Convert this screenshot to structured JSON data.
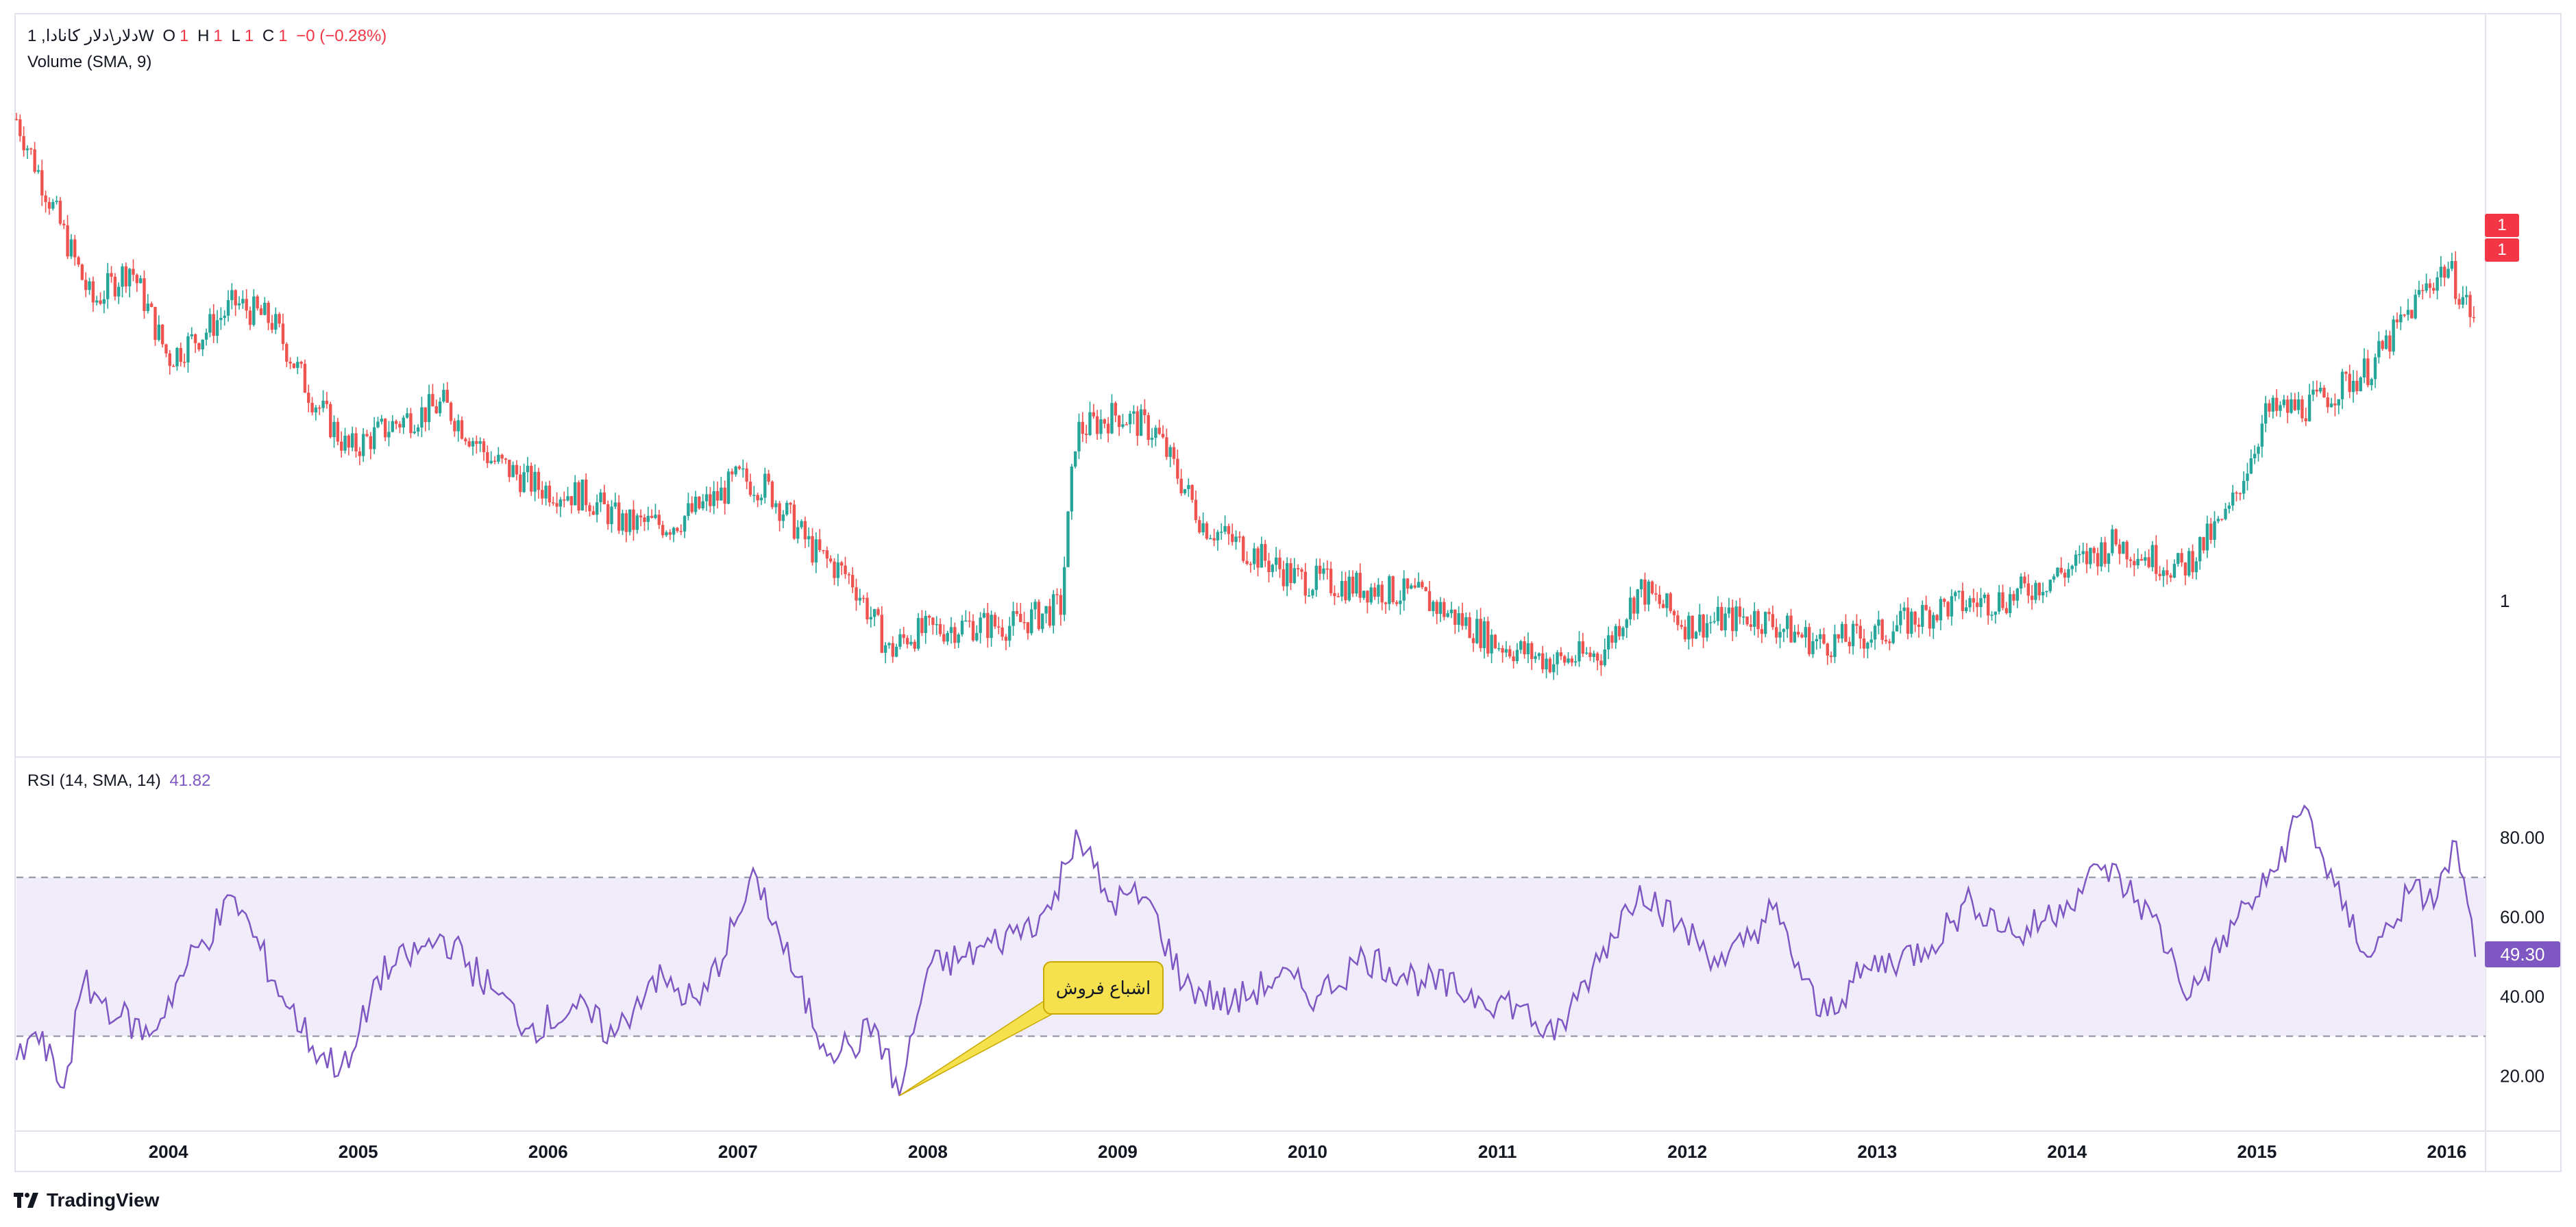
{
  "header": {
    "symbol": "دلار\\دلار کانادا, 1W",
    "o_label": "O",
    "o_value": "1",
    "h_label": "H",
    "h_value": "1",
    "l_label": "L",
    "l_value": "1",
    "c_label": "C",
    "c_value": "1",
    "change": "−0 (−0.28%)"
  },
  "volume_legend": "Volume (SMA, 9)",
  "rsi_legend": {
    "label": "RSI (14, SMA, 14)",
    "value": "41.82"
  },
  "price_axis": {
    "label": "1",
    "badges": [
      "1",
      "1"
    ]
  },
  "rsi_axis": {
    "ticks": [
      "80.00",
      "60.00",
      "40.00",
      "20.00"
    ],
    "current": "49.30"
  },
  "annotation": {
    "text": "اشباع فروش"
  },
  "footer": {
    "brand": "TradingView"
  },
  "colors": {
    "up": "#26a69a",
    "down": "#ef5350",
    "rsi": "#7e57c2",
    "band": "#f1ecfa"
  },
  "chart_data": [
    {
      "type": "candlestick",
      "x_range": [
        2003.2,
        2016.15
      ],
      "x_ticks": [
        "2004",
        "2005",
        "2006",
        "2007",
        "2008",
        "2009",
        "2010",
        "2011",
        "2012",
        "2013",
        "2014",
        "2015",
        "2016"
      ],
      "close_points": [
        [
          2003.2,
          1.56
        ],
        [
          2003.4,
          1.46
        ],
        [
          2003.6,
          1.36
        ],
        [
          2003.8,
          1.4
        ],
        [
          2004.0,
          1.3
        ],
        [
          2004.2,
          1.33
        ],
        [
          2004.35,
          1.36
        ],
        [
          2004.55,
          1.34
        ],
        [
          2004.75,
          1.26
        ],
        [
          2004.95,
          1.2
        ],
        [
          2005.2,
          1.23
        ],
        [
          2005.45,
          1.25
        ],
        [
          2005.7,
          1.19
        ],
        [
          2005.95,
          1.16
        ],
        [
          2006.2,
          1.15
        ],
        [
          2006.4,
          1.12
        ],
        [
          2006.65,
          1.12
        ],
        [
          2006.9,
          1.15
        ],
        [
          2007.0,
          1.17
        ],
        [
          2007.15,
          1.16
        ],
        [
          2007.4,
          1.09
        ],
        [
          2007.6,
          1.06
        ],
        [
          2007.8,
          0.98
        ],
        [
          2007.9,
          1.0
        ],
        [
          2008.2,
          1.01
        ],
        [
          2008.45,
          1.01
        ],
        [
          2008.7,
          1.03
        ],
        [
          2008.78,
          1.22
        ],
        [
          2009.0,
          1.24
        ],
        [
          2009.2,
          1.22
        ],
        [
          2009.45,
          1.12
        ],
        [
          2009.7,
          1.09
        ],
        [
          2009.95,
          1.06
        ],
        [
          2010.35,
          1.05
        ],
        [
          2010.6,
          1.04
        ],
        [
          2010.85,
          1.01
        ],
        [
          2011.0,
          0.99
        ],
        [
          2011.3,
          0.97
        ],
        [
          2011.55,
          0.98
        ],
        [
          2011.75,
          1.05
        ],
        [
          2012.0,
          1.01
        ],
        [
          2012.35,
          1.02
        ],
        [
          2012.7,
          0.99
        ],
        [
          2013.0,
          1.0
        ],
        [
          2013.35,
          1.03
        ],
        [
          2013.7,
          1.04
        ],
        [
          2014.0,
          1.07
        ],
        [
          2014.25,
          1.1
        ],
        [
          2014.6,
          1.07
        ],
        [
          2014.85,
          1.13
        ],
        [
          2015.05,
          1.24
        ],
        [
          2015.3,
          1.25
        ],
        [
          2015.6,
          1.29
        ],
        [
          2015.9,
          1.38
        ],
        [
          2016.0,
          1.4
        ],
        [
          2016.15,
          1.34
        ]
      ]
    },
    {
      "type": "line",
      "name": "RSI (14, SMA, 14)",
      "ylim": [
        8,
        96
      ],
      "yticks": [
        20,
        40,
        60,
        80
      ],
      "band": [
        30,
        70
      ],
      "points": [
        [
          2003.2,
          24
        ],
        [
          2003.3,
          31
        ],
        [
          2003.45,
          17
        ],
        [
          2003.55,
          43
        ],
        [
          2003.75,
          35
        ],
        [
          2003.9,
          30
        ],
        [
          2004.1,
          48
        ],
        [
          2004.35,
          65
        ],
        [
          2004.6,
          40
        ],
        [
          2004.8,
          25
        ],
        [
          2004.95,
          22
        ],
        [
          2005.1,
          45
        ],
        [
          2005.45,
          55
        ],
        [
          2005.7,
          42
        ],
        [
          2005.9,
          32
        ],
        [
          2006.15,
          37
        ],
        [
          2006.35,
          30
        ],
        [
          2006.55,
          45
        ],
        [
          2006.8,
          38
        ],
        [
          2007.0,
          60
        ],
        [
          2007.1,
          70
        ],
        [
          2007.3,
          45
        ],
        [
          2007.45,
          28
        ],
        [
          2007.6,
          27
        ],
        [
          2007.72,
          33
        ],
        [
          2007.85,
          15
        ],
        [
          2008.0,
          47
        ],
        [
          2008.2,
          50
        ],
        [
          2008.45,
          56
        ],
        [
          2008.65,
          62
        ],
        [
          2008.78,
          82
        ],
        [
          2008.95,
          64
        ],
        [
          2009.15,
          65
        ],
        [
          2009.35,
          43
        ],
        [
          2009.6,
          38
        ],
        [
          2009.85,
          45
        ],
        [
          2010.05,
          40
        ],
        [
          2010.3,
          50
        ],
        [
          2010.6,
          44
        ],
        [
          2010.9,
          40
        ],
        [
          2011.1,
          38
        ],
        [
          2011.3,
          29
        ],
        [
          2011.5,
          47
        ],
        [
          2011.75,
          68
        ],
        [
          2011.95,
          58
        ],
        [
          2012.2,
          48
        ],
        [
          2012.45,
          62
        ],
        [
          2012.7,
          35
        ],
        [
          2012.95,
          47
        ],
        [
          2013.25,
          52
        ],
        [
          2013.5,
          64
        ],
        [
          2013.75,
          55
        ],
        [
          2014.0,
          64
        ],
        [
          2014.2,
          73
        ],
        [
          2014.45,
          60
        ],
        [
          2014.65,
          40
        ],
        [
          2014.9,
          60
        ],
        [
          2015.05,
          68
        ],
        [
          2015.25,
          88
        ],
        [
          2015.45,
          62
        ],
        [
          2015.6,
          50
        ],
        [
          2015.8,
          66
        ],
        [
          2015.95,
          65
        ],
        [
          2016.05,
          79
        ],
        [
          2016.15,
          50
        ]
      ]
    }
  ]
}
